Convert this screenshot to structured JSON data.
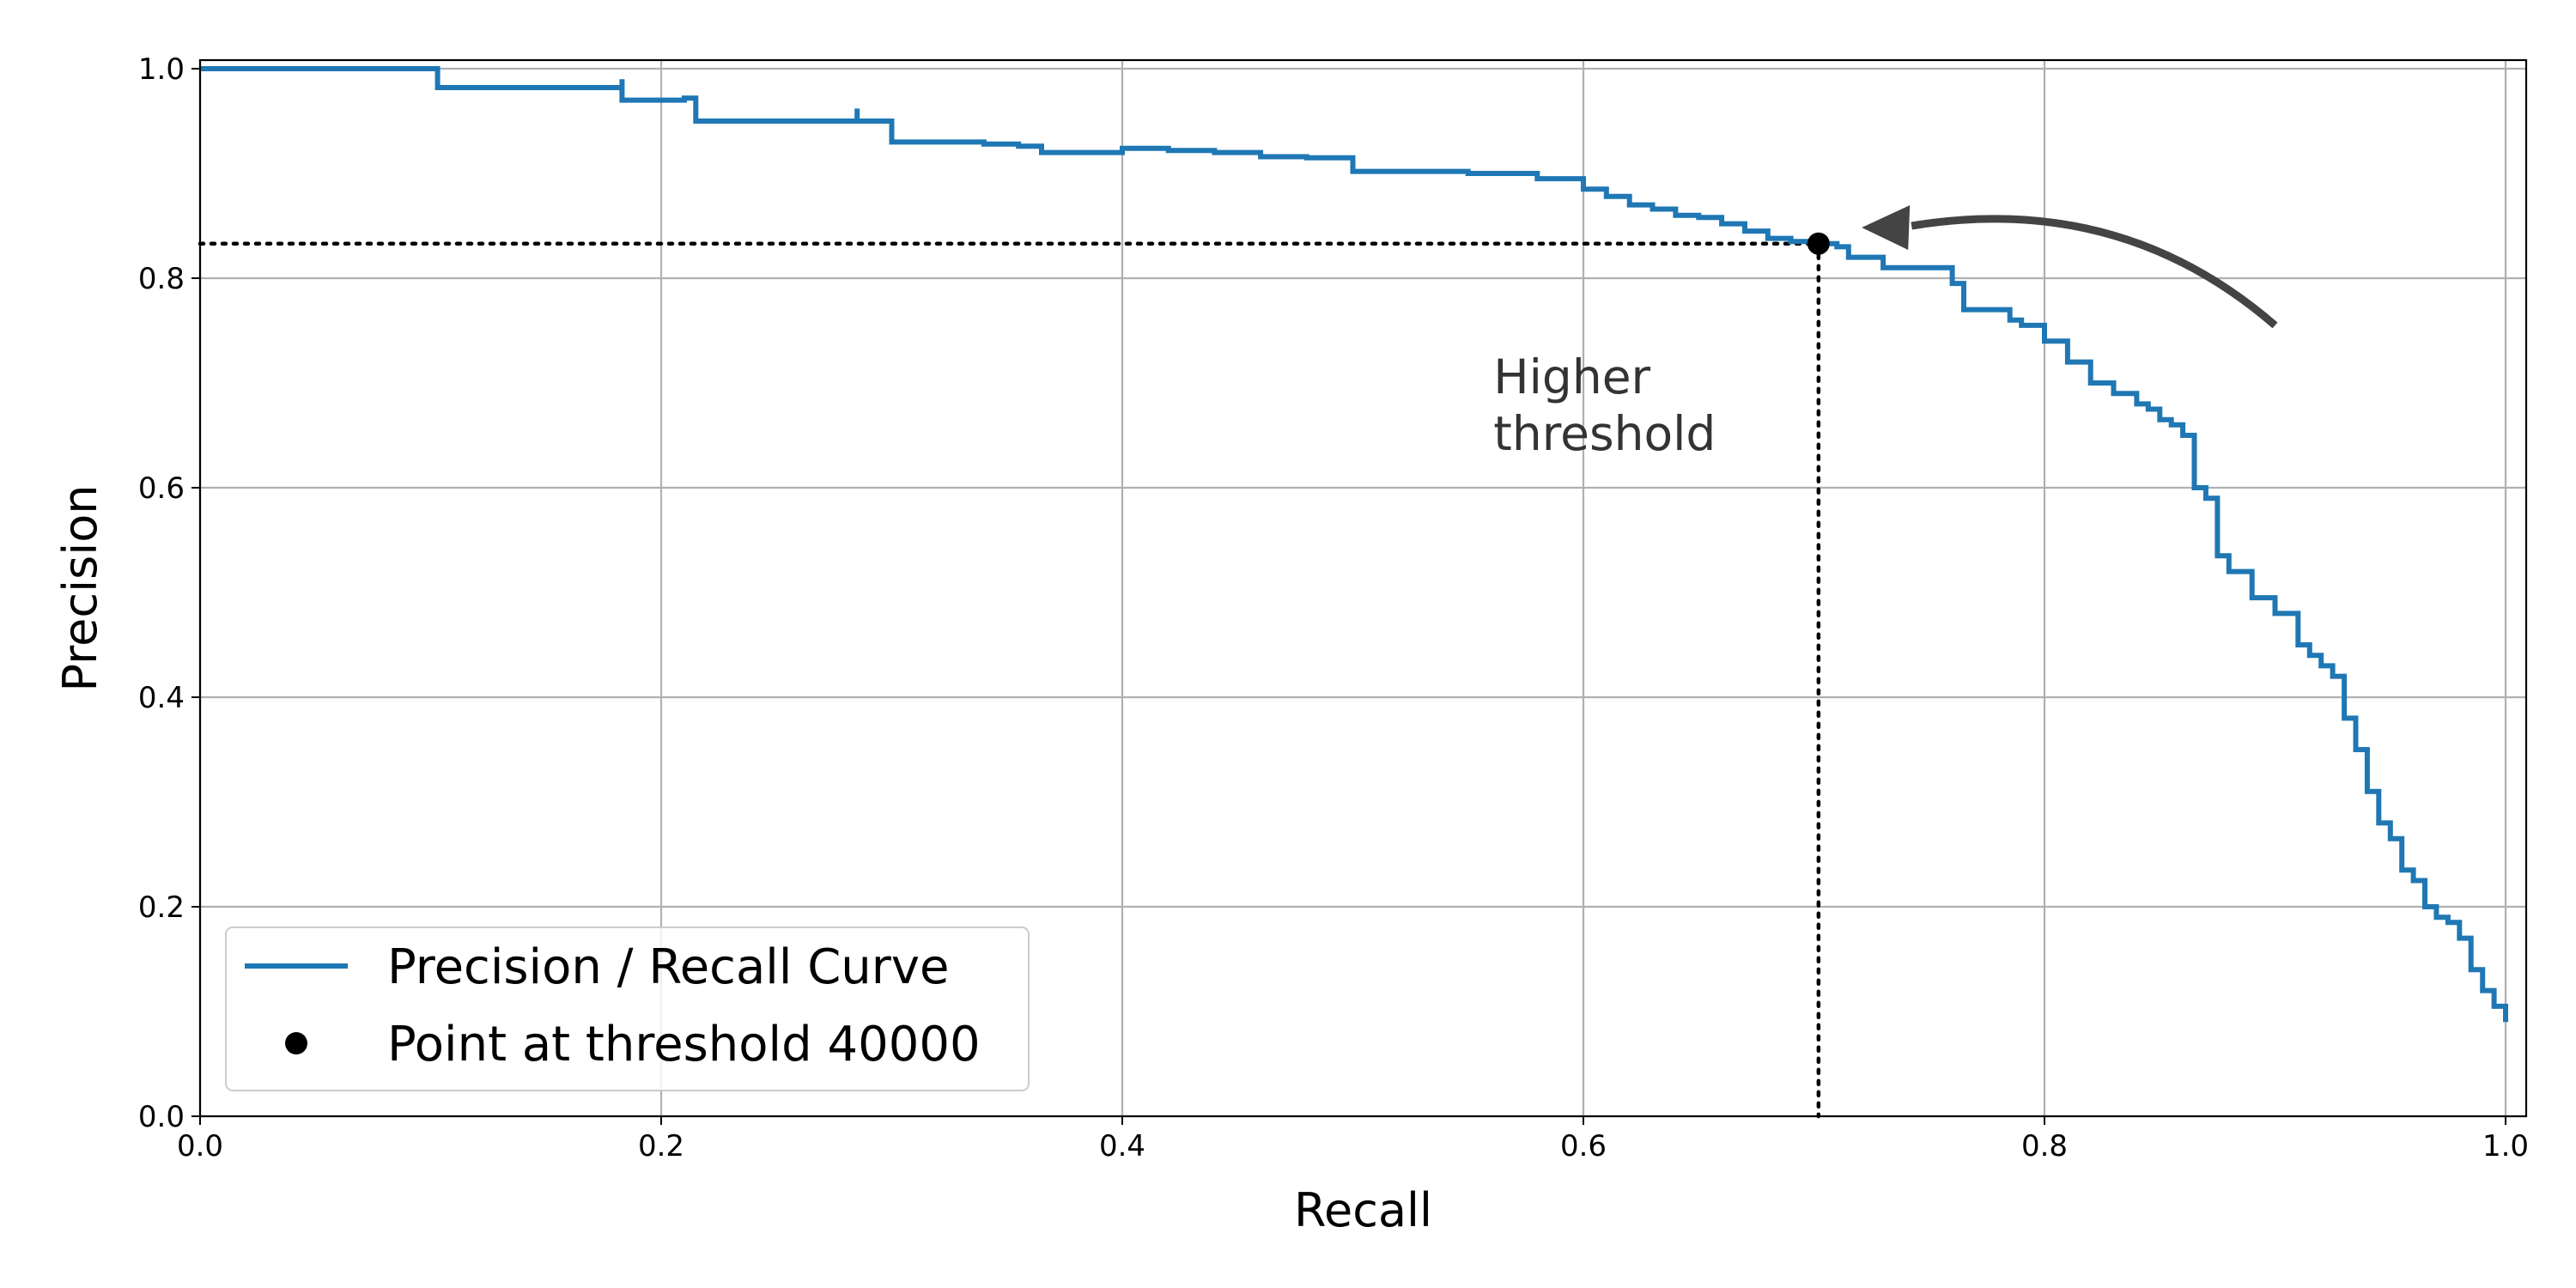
{
  "chart_data": {
    "type": "line",
    "title": "",
    "xlabel": "Recall",
    "ylabel": "Precision",
    "xlim": [
      0.0,
      1.0
    ],
    "ylim": [
      0.0,
      1.0
    ],
    "xticks": [
      "0.0",
      "0.2",
      "0.4",
      "0.6",
      "0.8",
      "1.0"
    ],
    "yticks": [
      "0.0",
      "0.2",
      "0.4",
      "0.6",
      "0.8",
      "1.0"
    ],
    "grid": true,
    "legend_position": "bottom-left",
    "series": [
      {
        "name": "Precision / Recall Curve",
        "color": "#1f77b4",
        "style": "step",
        "x": [
          0.0,
          0.103,
          0.103,
          0.183,
          0.183,
          0.21,
          0.215,
          0.215,
          0.285,
          0.285,
          0.3,
          0.3,
          0.315,
          0.32,
          0.34,
          0.355,
          0.365,
          0.37,
          0.4,
          0.42,
          0.44,
          0.46,
          0.48,
          0.5,
          0.5,
          0.53,
          0.55,
          0.57,
          0.58,
          0.6,
          0.61,
          0.62,
          0.63,
          0.64,
          0.65,
          0.66,
          0.67,
          0.68,
          0.69,
          0.7,
          0.702,
          0.71,
          0.715,
          0.73,
          0.745,
          0.75,
          0.76,
          0.765,
          0.785,
          0.79,
          0.8,
          0.81,
          0.82,
          0.83,
          0.84,
          0.845,
          0.85,
          0.855,
          0.86,
          0.865,
          0.87,
          0.875,
          0.875,
          0.88,
          0.89,
          0.9,
          0.91,
          0.915,
          0.92,
          0.925,
          0.93,
          0.935,
          0.94,
          0.945,
          0.95,
          0.955,
          0.96,
          0.965,
          0.97,
          0.975,
          0.98,
          0.985,
          0.99,
          0.995,
          1.0
        ],
        "y": [
          1.0,
          1.0,
          0.982,
          0.99,
          0.97,
          0.972,
          0.965,
          0.95,
          0.962,
          0.95,
          0.95,
          0.93,
          0.93,
          0.93,
          0.928,
          0.926,
          0.92,
          0.92,
          0.924,
          0.922,
          0.92,
          0.916,
          0.915,
          0.915,
          0.902,
          0.902,
          0.9,
          0.9,
          0.895,
          0.885,
          0.878,
          0.87,
          0.866,
          0.86,
          0.858,
          0.852,
          0.845,
          0.838,
          0.835,
          0.833,
          0.833,
          0.83,
          0.82,
          0.81,
          0.81,
          0.81,
          0.795,
          0.77,
          0.76,
          0.755,
          0.74,
          0.72,
          0.7,
          0.69,
          0.68,
          0.675,
          0.665,
          0.66,
          0.65,
          0.6,
          0.59,
          0.58,
          0.535,
          0.52,
          0.495,
          0.48,
          0.45,
          0.44,
          0.43,
          0.42,
          0.38,
          0.35,
          0.31,
          0.28,
          0.265,
          0.235,
          0.225,
          0.2,
          0.19,
          0.185,
          0.17,
          0.14,
          0.12,
          0.105,
          0.09
        ]
      },
      {
        "name": "Point at threshold 40000",
        "color": "#000000",
        "style": "marker",
        "x": [
          0.702
        ],
        "y": [
          0.833
        ]
      }
    ],
    "reference_lines": {
      "horizontal_y": 0.833,
      "vertical_x": 0.702,
      "style": "dotted",
      "color": "#000000"
    },
    "annotation": {
      "text_lines": [
        "Higher",
        "threshold"
      ],
      "arrow_from": [
        0.9,
        0.755
      ],
      "arrow_to": [
        0.72,
        0.85
      ],
      "arrow_color": "#444444"
    }
  }
}
